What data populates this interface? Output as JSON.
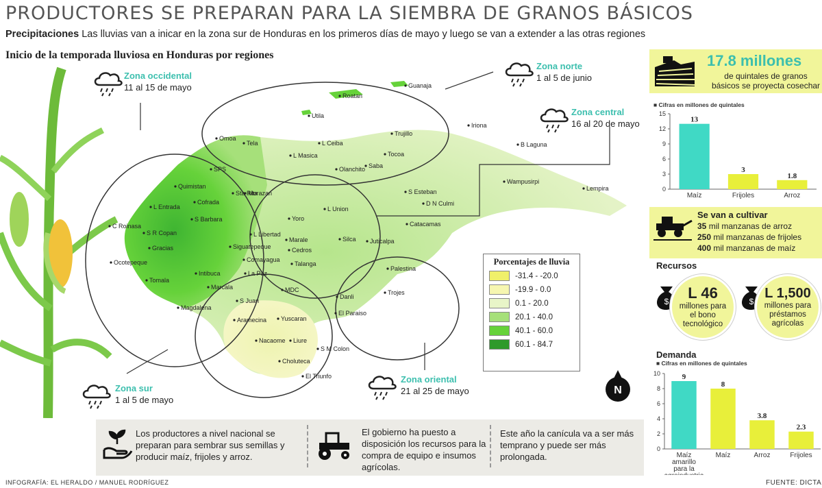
{
  "title": "PRODUCTORES SE PREPARAN PARA LA SIEMBRA DE GRANOS BÁSICOS",
  "subtitle": {
    "lead": "Precipitaciones",
    "text": " Las lluvias van a inicar en la zona sur de Honduras en los primeros días de mayo y luego se van a extender a las otras regiones"
  },
  "map": {
    "title": "Inicio de la temporada lluviosa en Honduras por regiones",
    "zones": [
      {
        "name": "Zona occidental",
        "dates": "11 al 15 de mayo"
      },
      {
        "name": "Zona norte",
        "dates": "1 al 5 de junio"
      },
      {
        "name": "Zona central",
        "dates": "16 al 20 de mayo"
      },
      {
        "name": "Zona sur",
        "dates": "1 al 5 de mayo"
      },
      {
        "name": "Zona oriental",
        "dates": "21 al 25 de mayo"
      }
    ],
    "places": [
      "Guanaja",
      "Roatan",
      "Utila",
      "Omoa",
      "Tela",
      "L Ceiba",
      "Trujillo",
      "Iriona",
      "B Laguna",
      "L Masica",
      "Olanchito",
      "Saba",
      "Tocoa",
      "SPS",
      "Quimistan",
      "Morazan",
      "Wampusirpi",
      "Lempira",
      "Sta Rita",
      "S Esteban",
      "D N Culmi",
      "L Entrada",
      "Cofrada",
      "Yoro",
      "L Union",
      "C Roinasa",
      "S R Copan",
      "S Barbara",
      "Marale",
      "Silca",
      "Catacamas",
      "Gracias",
      "L Libertad",
      "Cedros",
      "Juticalpa",
      "Siguatepeque",
      "Comayagua",
      "Talanga",
      "Ocotepeque",
      "Tomala",
      "Intibuca",
      "La Paz",
      "Palestina",
      "Marcala",
      "MDC",
      "Trojes",
      "S Juan",
      "Danli",
      "Magdalena",
      "Aramecina",
      "Yuscaran",
      "El Paraiso",
      "Nacaome",
      "Liure",
      "S M Colon",
      "Choluteca",
      "El Triunfo"
    ],
    "north": "N",
    "legend": {
      "title": "Porcentajes de lluvia",
      "items": [
        {
          "label": "-31.4 - -20.0",
          "color": "#f0f06a"
        },
        {
          "label": "-19.9 - 0.0",
          "color": "#f6f6b0"
        },
        {
          "label": "0.1 - 20.0",
          "color": "#e8f5c8"
        },
        {
          "label": "20.1 - 40.0",
          "color": "#a6e07a"
        },
        {
          "label": "40.1 - 60.0",
          "color": "#66d23a"
        },
        {
          "label": "60.1 - 84.7",
          "color": "#2f9a2a"
        }
      ]
    }
  },
  "bottom": {
    "items": [
      {
        "text": "Los productores a nivel nacional se preparan para sembrar sus semillas y producir maíz, frijoles y arroz."
      },
      {
        "text": "El gobierno ha puesto a disposición los recursos para la compra de equipo e insumos agrícolas."
      },
      {
        "text": "Este año la canícula va a ser más temprano y puede ser más prolongada."
      }
    ]
  },
  "credit": "INFOGRAFÍA: EL HERALDO / MANUEL RODRÍGUEZ",
  "source": "FUENTE: DICTA",
  "harvest": {
    "big": "17.8 millones",
    "text": "de quintales de granos básicos se proyecta cosechar"
  },
  "cultivate": {
    "title": "Se van a cultivar",
    "lines": [
      {
        "num": "35",
        "text": " mil manzanas de arroz"
      },
      {
        "num": "250",
        "text": " mil manzanas de frijoles"
      },
      {
        "num": "400",
        "text": " mil manzanas de maíz"
      }
    ]
  },
  "recursos": {
    "title": "Recursos",
    "items": [
      {
        "amount": "L 46",
        "text": "millones para el bono tecnológico"
      },
      {
        "amount": "L 1,500",
        "text": "millones para préstamos agrícolas"
      }
    ]
  },
  "chart_data": [
    {
      "type": "bar",
      "title": "Cifras en millones de quintales",
      "categories": [
        "Maíz",
        "Frijoles",
        "Arroz"
      ],
      "values": [
        13,
        3,
        1.8
      ],
      "data_labels": [
        "13",
        "3",
        "1.8"
      ],
      "yticks": [
        0,
        3,
        6,
        9,
        12,
        15
      ],
      "ylim": [
        0,
        15
      ],
      "colors": [
        "#40d9c5",
        "#e8ef3a",
        "#e8ef3a"
      ]
    },
    {
      "type": "bar",
      "section_title": "Demanda",
      "title": "Cifras en millones de quintales",
      "categories": [
        "Maíz amarillo para la agroindustria",
        "Maíz",
        "Arroz",
        "Frijoles"
      ],
      "values": [
        9,
        8,
        3.8,
        2.3
      ],
      "data_labels": [
        "9",
        "8",
        "3.8",
        "2.3"
      ],
      "yticks": [
        0,
        2,
        4,
        6,
        8,
        10
      ],
      "ylim": [
        0,
        10
      ],
      "colors": [
        "#40d9c5",
        "#e8ef3a",
        "#e8ef3a",
        "#e8ef3a"
      ]
    }
  ]
}
